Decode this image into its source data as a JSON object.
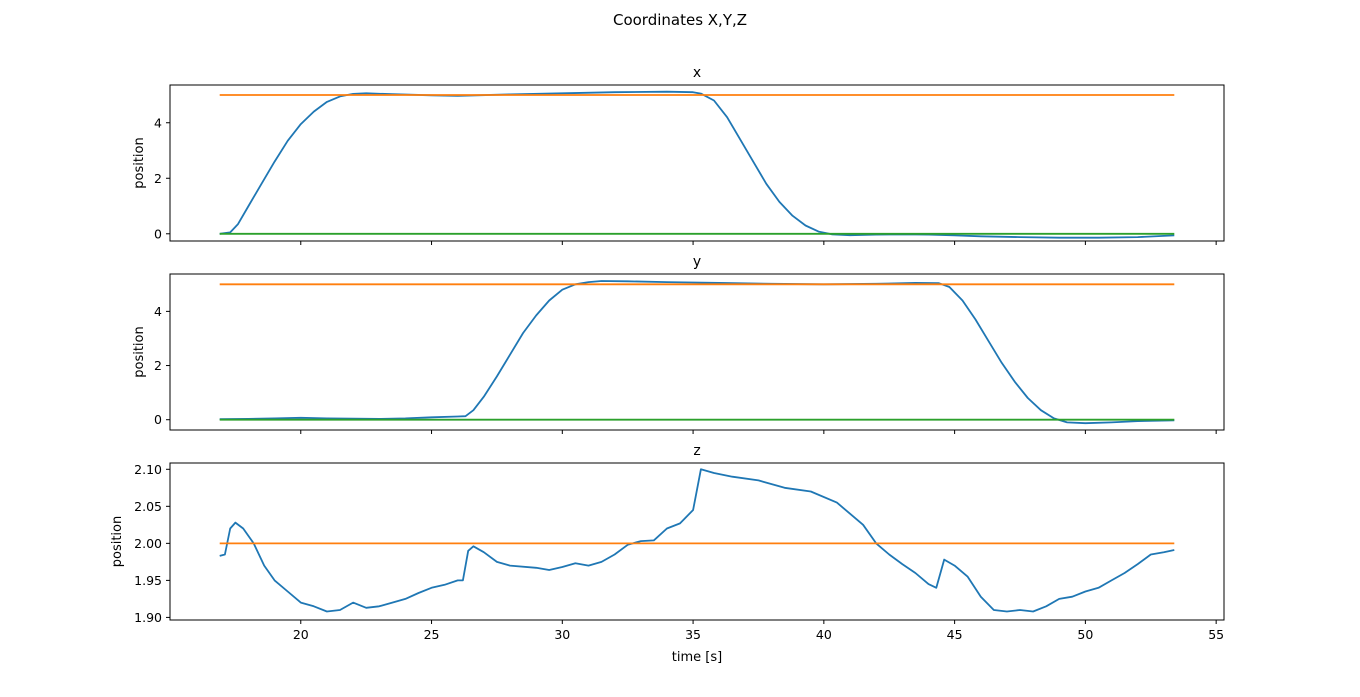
{
  "suptitle": "Coordinates X,Y,Z",
  "colors": {
    "measured": "#1f77b4",
    "reference": "#ff7f0e",
    "zero": "#2ca02c"
  },
  "chart_data": [
    {
      "type": "line",
      "title": "x",
      "xlabel": "",
      "ylabel": "position",
      "xlim": [
        15.0,
        55.3
      ],
      "ylim": [
        -0.26,
        5.36
      ],
      "yticks": [
        0,
        2,
        4
      ],
      "xticks": [
        20,
        25,
        30,
        35,
        40,
        45,
        50,
        55
      ],
      "xticklabels_visible": false,
      "series": [
        {
          "color": "#1f77b4",
          "points": [
            [
              16.9,
              0
            ],
            [
              17.3,
              0.05
            ],
            [
              17.6,
              0.35
            ],
            [
              18.0,
              1.0
            ],
            [
              18.5,
              1.8
            ],
            [
              19.0,
              2.6
            ],
            [
              19.5,
              3.35
            ],
            [
              20.0,
              3.95
            ],
            [
              20.5,
              4.4
            ],
            [
              21.0,
              4.75
            ],
            [
              21.5,
              4.95
            ],
            [
              22.0,
              5.04
            ],
            [
              22.5,
              5.06
            ],
            [
              23.5,
              5.03
            ],
            [
              25.0,
              4.99
            ],
            [
              26.0,
              4.97
            ],
            [
              28.0,
              5.02
            ],
            [
              30.0,
              5.06
            ],
            [
              32.0,
              5.1
            ],
            [
              34.0,
              5.12
            ],
            [
              35.0,
              5.1
            ],
            [
              35.3,
              5.05
            ],
            [
              35.8,
              4.8
            ],
            [
              36.3,
              4.2
            ],
            [
              36.8,
              3.4
            ],
            [
              37.3,
              2.6
            ],
            [
              37.8,
              1.8
            ],
            [
              38.3,
              1.15
            ],
            [
              38.8,
              0.65
            ],
            [
              39.3,
              0.3
            ],
            [
              39.8,
              0.08
            ],
            [
              40.3,
              -0.02
            ],
            [
              41.0,
              -0.05
            ],
            [
              42.0,
              -0.03
            ],
            [
              43.0,
              -0.02
            ],
            [
              44.0,
              -0.03
            ],
            [
              45.0,
              -0.06
            ],
            [
              46.0,
              -0.09
            ],
            [
              47.5,
              -0.12
            ],
            [
              49.0,
              -0.14
            ],
            [
              50.5,
              -0.14
            ],
            [
              52.0,
              -0.12
            ],
            [
              53.4,
              -0.06
            ]
          ]
        },
        {
          "color": "#ff7f0e",
          "points": [
            [
              16.9,
              5.0
            ],
            [
              53.4,
              5.0
            ]
          ]
        },
        {
          "color": "#2ca02c",
          "points": [
            [
              16.9,
              0.0
            ],
            [
              53.4,
              0.0
            ]
          ]
        }
      ]
    },
    {
      "type": "line",
      "title": "y",
      "xlabel": "",
      "ylabel": "position",
      "xlim": [
        15.0,
        55.3
      ],
      "ylim": [
        -0.38,
        5.38
      ],
      "yticks": [
        0,
        2,
        4
      ],
      "xticks": [
        20,
        25,
        30,
        35,
        40,
        45,
        50,
        55
      ],
      "xticklabels_visible": false,
      "series": [
        {
          "color": "#1f77b4",
          "points": [
            [
              16.9,
              0.02
            ],
            [
              18.0,
              0.03
            ],
            [
              19.0,
              0.05
            ],
            [
              20.0,
              0.07
            ],
            [
              21.0,
              0.05
            ],
            [
              22.0,
              0.04
            ],
            [
              23.0,
              0.03
            ],
            [
              24.0,
              0.05
            ],
            [
              25.0,
              0.09
            ],
            [
              26.0,
              0.12
            ],
            [
              26.3,
              0.13
            ],
            [
              26.6,
              0.35
            ],
            [
              27.0,
              0.85
            ],
            [
              27.5,
              1.6
            ],
            [
              28.0,
              2.4
            ],
            [
              28.5,
              3.2
            ],
            [
              29.0,
              3.85
            ],
            [
              29.5,
              4.4
            ],
            [
              30.0,
              4.8
            ],
            [
              30.5,
              5.0
            ],
            [
              31.0,
              5.08
            ],
            [
              31.5,
              5.12
            ],
            [
              32.5,
              5.11
            ],
            [
              34.0,
              5.08
            ],
            [
              36.0,
              5.05
            ],
            [
              38.0,
              5.02
            ],
            [
              40.0,
              5.0
            ],
            [
              42.0,
              5.02
            ],
            [
              43.5,
              5.05
            ],
            [
              44.4,
              5.04
            ],
            [
              44.8,
              4.9
            ],
            [
              45.3,
              4.4
            ],
            [
              45.8,
              3.7
            ],
            [
              46.3,
              2.9
            ],
            [
              46.8,
              2.1
            ],
            [
              47.3,
              1.4
            ],
            [
              47.8,
              0.8
            ],
            [
              48.3,
              0.35
            ],
            [
              48.8,
              0.05
            ],
            [
              49.3,
              -0.1
            ],
            [
              50.0,
              -0.13
            ],
            [
              51.0,
              -0.1
            ],
            [
              52.0,
              -0.05
            ],
            [
              53.4,
              -0.02
            ]
          ]
        },
        {
          "color": "#ff7f0e",
          "points": [
            [
              16.9,
              5.0
            ],
            [
              53.4,
              5.0
            ]
          ]
        },
        {
          "color": "#2ca02c",
          "points": [
            [
              16.9,
              0.0
            ],
            [
              53.4,
              0.0
            ]
          ]
        }
      ]
    },
    {
      "type": "line",
      "title": "z",
      "xlabel": "time [s]",
      "ylabel": "position",
      "xlim": [
        15.0,
        55.3
      ],
      "ylim": [
        1.8965,
        2.1085
      ],
      "yticks": [
        1.9,
        1.95,
        2.0,
        2.05,
        2.1
      ],
      "yticklabels": [
        "1.90",
        "1.95",
        "2.00",
        "2.05",
        "2.10"
      ],
      "xticks": [
        20,
        25,
        30,
        35,
        40,
        45,
        50,
        55
      ],
      "xticklabels": [
        "20",
        "25",
        "30",
        "35",
        "40",
        "45",
        "50",
        "55"
      ],
      "xticklabels_visible": true,
      "series": [
        {
          "color": "#1f77b4",
          "points": [
            [
              16.9,
              1.983
            ],
            [
              17.1,
              1.985
            ],
            [
              17.3,
              2.02
            ],
            [
              17.5,
              2.028
            ],
            [
              17.8,
              2.02
            ],
            [
              18.2,
              2.0
            ],
            [
              18.6,
              1.97
            ],
            [
              19.0,
              1.95
            ],
            [
              19.5,
              1.935
            ],
            [
              20.0,
              1.92
            ],
            [
              20.5,
              1.915
            ],
            [
              21.0,
              1.908
            ],
            [
              21.5,
              1.91
            ],
            [
              22.0,
              1.92
            ],
            [
              22.5,
              1.913
            ],
            [
              23.0,
              1.915
            ],
            [
              23.5,
              1.92
            ],
            [
              24.0,
              1.925
            ],
            [
              24.5,
              1.933
            ],
            [
              25.0,
              1.94
            ],
            [
              25.5,
              1.944
            ],
            [
              26.0,
              1.95
            ],
            [
              26.2,
              1.95
            ],
            [
              26.4,
              1.99
            ],
            [
              26.6,
              1.996
            ],
            [
              27.0,
              1.988
            ],
            [
              27.5,
              1.975
            ],
            [
              28.0,
              1.97
            ],
            [
              29.0,
              1.967
            ],
            [
              29.5,
              1.964
            ],
            [
              30.0,
              1.968
            ],
            [
              30.5,
              1.973
            ],
            [
              31.0,
              1.97
            ],
            [
              31.5,
              1.975
            ],
            [
              32.0,
              1.985
            ],
            [
              32.5,
              1.998
            ],
            [
              33.0,
              2.003
            ],
            [
              33.5,
              2.004
            ],
            [
              34.0,
              2.02
            ],
            [
              34.5,
              2.027
            ],
            [
              35.0,
              2.045
            ],
            [
              35.3,
              2.1
            ],
            [
              35.8,
              2.095
            ],
            [
              36.5,
              2.09
            ],
            [
              37.5,
              2.085
            ],
            [
              38.5,
              2.075
            ],
            [
              39.5,
              2.07
            ],
            [
              40.5,
              2.055
            ],
            [
              41.0,
              2.04
            ],
            [
              41.5,
              2.025
            ],
            [
              42.0,
              2.0
            ],
            [
              42.5,
              1.985
            ],
            [
              43.0,
              1.972
            ],
            [
              43.5,
              1.96
            ],
            [
              44.0,
              1.945
            ],
            [
              44.3,
              1.94
            ],
            [
              44.6,
              1.978
            ],
            [
              45.0,
              1.97
            ],
            [
              45.5,
              1.955
            ],
            [
              46.0,
              1.928
            ],
            [
              46.5,
              1.91
            ],
            [
              47.0,
              1.908
            ],
            [
              47.5,
              1.91
            ],
            [
              48.0,
              1.908
            ],
            [
              48.5,
              1.915
            ],
            [
              49.0,
              1.925
            ],
            [
              49.5,
              1.928
            ],
            [
              50.0,
              1.935
            ],
            [
              50.5,
              1.94
            ],
            [
              51.0,
              1.95
            ],
            [
              51.5,
              1.96
            ],
            [
              52.0,
              1.972
            ],
            [
              52.5,
              1.985
            ],
            [
              53.0,
              1.988
            ],
            [
              53.4,
              1.991
            ]
          ]
        },
        {
          "color": "#ff7f0e",
          "points": [
            [
              16.9,
              2.0
            ],
            [
              53.4,
              2.0
            ]
          ]
        }
      ]
    }
  ]
}
